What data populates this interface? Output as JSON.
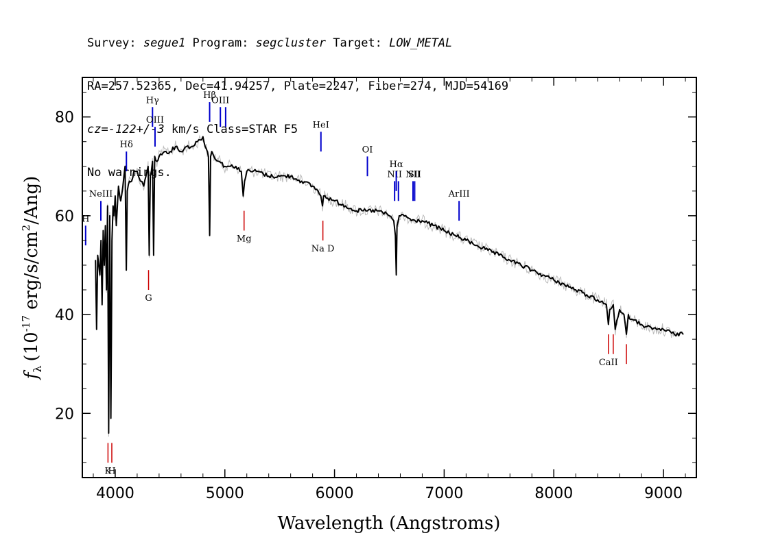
{
  "header": {
    "line1_prefix": "Survey: ",
    "survey": "segue1",
    "line1_mid": " Program: ",
    "program": "segcluster",
    "line1_mid2": " Target: ",
    "target": "LOW_METAL",
    "line2": "RA=257.52365, Dec=41.94257, Plate=2247, Fiber=274, MJD=54169",
    "line3_cz": "cz=-122+/-3",
    "line3_rest": " km/s Class=STAR F5",
    "line4": "No warnings."
  },
  "chart_data": {
    "type": "line",
    "xlabel": "Wavelength (Angstroms)",
    "ylabel_main": "f",
    "ylabel_sub": "λ",
    "ylabel_units": "(10",
    "ylabel_exp": "-17",
    "ylabel_units2": " erg/s/cm",
    "ylabel_exp2": "2",
    "ylabel_units3": "/Ang)",
    "xlim": [
      3700,
      9300
    ],
    "ylim": [
      7,
      88
    ],
    "x_ticks": [
      4000,
      5000,
      6000,
      7000,
      8000,
      9000
    ],
    "x_tick_labels": [
      "4000",
      "5000",
      "6000",
      "7000",
      "8000",
      "9000"
    ],
    "y_ticks": [
      20,
      40,
      60,
      80
    ],
    "y_tick_labels": [
      "20",
      "40",
      "60",
      "80"
    ],
    "series": [
      {
        "color": "#000000",
        "x": [
          3820,
          3830,
          3840,
          3850,
          3860,
          3870,
          3880,
          3890,
          3900,
          3910,
          3920,
          3930,
          3940,
          3950,
          3960,
          3965,
          3970,
          3980,
          3990,
          4000,
          4010,
          4020,
          4030,
          4050,
          4070,
          4090,
          4101,
          4110,
          4130,
          4150,
          4170,
          4200,
          4230,
          4260,
          4280,
          4300,
          4310,
          4320,
          4340,
          4350,
          4360,
          4380,
          4400,
          4450,
          4500,
          4550,
          4600,
          4650,
          4700,
          4750,
          4800,
          4820,
          4840,
          4850,
          4861,
          4870,
          4880,
          4900,
          4950,
          5000,
          5050,
          5100,
          5150,
          5167,
          5180,
          5200,
          5300,
          5400,
          5500,
          5600,
          5700,
          5800,
          5850,
          5875,
          5890,
          5900,
          6000,
          6100,
          6200,
          6300,
          6400,
          6500,
          6540,
          6555,
          6563,
          6570,
          6590,
          6650,
          6700,
          6800,
          6900,
          7000,
          7100,
          7200,
          7300,
          7400,
          7500,
          7600,
          7700,
          7800,
          7900,
          8000,
          8100,
          8200,
          8300,
          8400,
          8480,
          8498,
          8510,
          8542,
          8560,
          8600,
          8640,
          8662,
          8680,
          8700,
          8800,
          8900,
          9000,
          9100,
          9180
        ],
        "y": [
          51,
          37,
          52,
          50,
          48,
          55,
          42,
          57,
          50,
          58,
          45,
          62,
          16,
          60,
          19,
          35,
          55,
          62,
          60,
          64,
          58,
          62,
          66,
          63,
          66,
          70,
          49,
          65,
          67,
          67,
          69,
          69,
          67,
          66,
          68,
          70,
          52,
          68,
          71,
          52,
          72,
          71,
          72,
          73,
          73,
          74,
          73,
          74,
          74,
          75,
          76,
          74,
          73,
          72,
          56,
          72,
          73,
          72,
          71,
          70,
          70,
          70,
          69,
          64,
          67,
          69,
          69,
          68,
          68,
          68,
          67,
          66,
          65,
          64,
          62,
          64,
          63,
          62,
          61,
          61,
          61,
          60,
          59,
          56,
          48,
          58,
          60,
          60,
          59,
          59,
          58,
          57,
          56,
          55,
          54,
          53,
          52,
          51,
          50,
          49,
          48,
          47,
          46,
          45,
          44,
          43,
          42,
          38,
          41,
          42,
          37,
          41,
          40,
          36,
          40,
          39,
          38,
          37,
          37,
          36,
          36
        ]
      }
    ],
    "line_markers": [
      {
        "label": "H",
        "x": 3730,
        "color": "blue",
        "low": 54,
        "high": 58
      },
      {
        "label": "NeIII",
        "x": 3869,
        "color": "blue",
        "low": 59,
        "high": 63
      },
      {
        "label": "Hδ",
        "x": 4102,
        "color": "blue",
        "low": 69,
        "high": 73
      },
      {
        "label": "Hγ",
        "x": 4340,
        "color": "blue",
        "low": 78,
        "high": 82
      },
      {
        "label": "OIII",
        "x": 4363,
        "color": "blue",
        "low": 74,
        "high": 78
      },
      {
        "label": "Hβ",
        "x": 4861,
        "color": "blue",
        "low": 79,
        "high": 83
      },
      {
        "label": "OIII",
        "x": 4959,
        "color": "blue",
        "low": 78,
        "high": 82
      },
      {
        "label": "",
        "x": 5007,
        "color": "blue",
        "low": 78,
        "high": 82
      },
      {
        "label": "HeI",
        "x": 5876,
        "color": "blue",
        "low": 73,
        "high": 77
      },
      {
        "label": "OI",
        "x": 6300,
        "color": "blue",
        "low": 68,
        "high": 72
      },
      {
        "label": "NII",
        "x": 6548,
        "color": "blue",
        "low": 63,
        "high": 67
      },
      {
        "label": "Hα",
        "x": 6563,
        "color": "blue",
        "low": 65,
        "high": 69
      },
      {
        "label": "",
        "x": 6583,
        "color": "blue",
        "low": 63,
        "high": 67
      },
      {
        "label": "NII",
        "x": 6716,
        "color": "blue",
        "low": 63,
        "high": 67
      },
      {
        "label": "SII",
        "x": 6731,
        "color": "blue",
        "low": 63,
        "high": 67
      },
      {
        "label": "ArIII",
        "x": 7136,
        "color": "blue",
        "low": 59,
        "high": 63
      },
      {
        "label": "K",
        "x": 3934,
        "color": "red",
        "low": 10,
        "high": 14
      },
      {
        "label": "H",
        "x": 3969,
        "color": "red",
        "low": 10,
        "high": 14
      },
      {
        "label": "G",
        "x": 4304,
        "color": "red",
        "low": 45,
        "high": 49
      },
      {
        "label": "Mg",
        "x": 5175,
        "color": "red",
        "low": 57,
        "high": 61
      },
      {
        "label": "Na D",
        "x": 5894,
        "color": "red",
        "low": 55,
        "high": 59
      },
      {
        "label": "CaII",
        "x": 8498,
        "color": "red",
        "low": 32,
        "high": 36
      },
      {
        "label": "",
        "x": 8542,
        "color": "red",
        "low": 32,
        "high": 36
      },
      {
        "label": "",
        "x": 8662,
        "color": "red",
        "low": 30,
        "high": 34
      }
    ]
  }
}
